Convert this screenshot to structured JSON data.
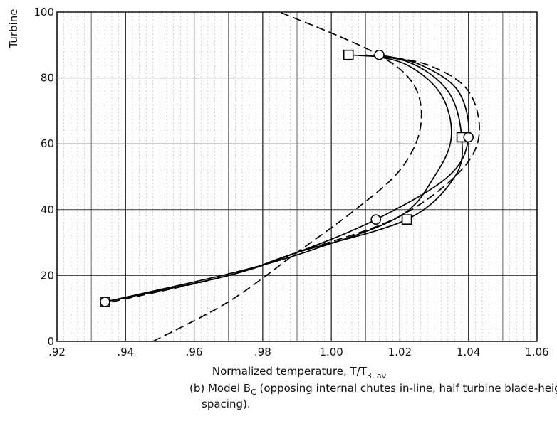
{
  "chart_data": {
    "type": "line",
    "ylabel": "Turbine",
    "xlabel": {
      "main": "Normalized temperature,  T/T",
      "sub": "3, av"
    },
    "xlim": [
      0.92,
      1.06
    ],
    "ylim": [
      0,
      100
    ],
    "xticks": [
      0.92,
      0.94,
      0.96,
      0.98,
      1.0,
      1.02,
      1.04,
      1.06
    ],
    "xtick_labels": [
      ".92",
      ".94",
      ".96",
      ".98",
      "1.00",
      "1.02",
      "1.04",
      "1.06"
    ],
    "yticks": [
      0,
      20,
      40,
      60,
      80,
      100
    ],
    "ytick_labels": [
      "0",
      "20",
      "40",
      "60",
      "80",
      "100"
    ],
    "grid": true,
    "series": [
      {
        "style": "solid",
        "marker": "square",
        "x": [
          0.934,
          0.97,
          0.99,
          1.022,
          1.036,
          1.038,
          1.034,
          1.022,
          1.005
        ],
        "y": [
          12,
          20,
          27,
          37,
          50,
          62,
          76,
          85,
          87
        ]
      },
      {
        "style": "solid",
        "marker": "circle",
        "x": [
          0.934,
          0.97,
          0.99,
          1.013,
          1.034,
          1.04,
          1.037,
          1.026,
          1.014
        ],
        "y": [
          12,
          20,
          27,
          37,
          50,
          62,
          76,
          84,
          87
        ]
      },
      {
        "style": "solid",
        "marker": "none",
        "x": [
          0.934,
          0.972,
          0.995,
          1.02,
          1.03,
          1.035,
          1.032,
          1.022,
          1.01
        ],
        "y": [
          12,
          21,
          28,
          38,
          50,
          62,
          75,
          84,
          87
        ]
      },
      {
        "style": "dashed",
        "marker": "none",
        "x": [
          0.936,
          0.97,
          0.99,
          1.018,
          1.036,
          1.043,
          1.04,
          1.028,
          1.012
        ],
        "y": [
          12,
          20,
          27,
          37,
          50,
          62,
          76,
          84,
          87
        ]
      },
      {
        "style": "dashed",
        "marker": "none",
        "x": [
          0.948,
          0.97,
          0.99,
          1.007,
          1.02,
          1.026,
          1.024,
          1.012,
          0.985
        ],
        "y": [
          0,
          12,
          27,
          40,
          52,
          65,
          78,
          88,
          100
        ]
      }
    ],
    "markers": [
      {
        "shape": "square",
        "x": 1.005,
        "y": 87
      },
      {
        "shape": "circle",
        "x": 1.014,
        "y": 87
      },
      {
        "shape": "square",
        "x": 1.038,
        "y": 62
      },
      {
        "shape": "circle",
        "x": 1.04,
        "y": 62
      },
      {
        "shape": "circle",
        "x": 1.013,
        "y": 37
      },
      {
        "shape": "square",
        "x": 1.022,
        "y": 37
      },
      {
        "shape": "square",
        "x": 0.934,
        "y": 12
      },
      {
        "shape": "circle",
        "x": 0.934,
        "y": 12
      }
    ]
  },
  "caption": {
    "line1_pre": "(b) Model B",
    "line1_sub": "C",
    "line1_post": " (opposing internal chutes in-line,  half turbine blade-height",
    "line2": "spacing)."
  }
}
